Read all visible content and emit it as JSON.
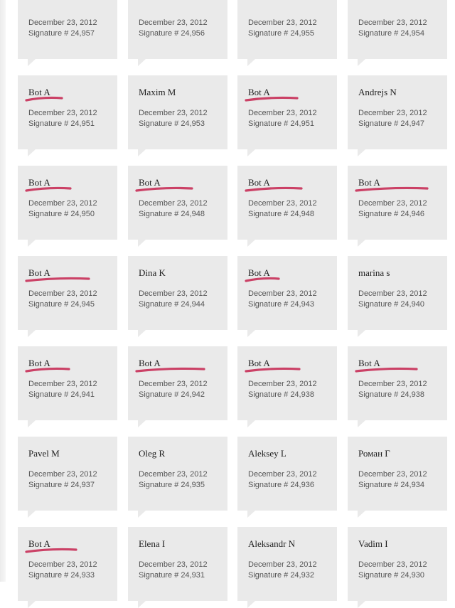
{
  "signature_label": "Signature #",
  "annotation_color": "#c8325a",
  "rows": [
    [
      {
        "name": "",
        "date": "December 23, 2012",
        "signature": "Signature # 24,957",
        "highlighted": false
      },
      {
        "name": "",
        "date": "December 23, 2012",
        "signature": "Signature # 24,956",
        "highlighted": false
      },
      {
        "name": "",
        "date": "December 23, 2012",
        "signature": "Signature # 24,955",
        "highlighted": false
      },
      {
        "name": "",
        "date": "December 23, 2012",
        "signature": "Signature # 24,954",
        "highlighted": false
      }
    ],
    [
      {
        "name": "Bot A",
        "date": "December 23, 2012",
        "signature": "Signature # 24,951",
        "highlighted": true
      },
      {
        "name": "Maxim M",
        "date": "December 23, 2012",
        "signature": "Signature # 24,953",
        "highlighted": false
      },
      {
        "name": "Bot A",
        "date": "December 23, 2012",
        "signature": "Signature # 24,951",
        "highlighted": true
      },
      {
        "name": "Andrejs N",
        "date": "December 23, 2012",
        "signature": "Signature # 24,947",
        "highlighted": false
      }
    ],
    [
      {
        "name": "Bot A",
        "date": "December 23, 2012",
        "signature": "Signature # 24,950",
        "highlighted": true
      },
      {
        "name": "Bot A",
        "date": "December 23, 2012",
        "signature": "Signature # 24,948",
        "highlighted": true
      },
      {
        "name": "Bot A",
        "date": "December 23, 2012",
        "signature": "Signature # 24,948",
        "highlighted": true
      },
      {
        "name": "Bot A",
        "date": "December 23, 2012",
        "signature": "Signature # 24,946",
        "highlighted": true
      }
    ],
    [
      {
        "name": "Bot A",
        "date": "December 23, 2012",
        "signature": "Signature # 24,945",
        "highlighted": true
      },
      {
        "name": "Dina K",
        "date": "December 23, 2012",
        "signature": "Signature # 24,944",
        "highlighted": false
      },
      {
        "name": "Bot A",
        "date": "December 23, 2012",
        "signature": "Signature # 24,943",
        "highlighted": true
      },
      {
        "name": "marina s",
        "date": "December 23, 2012",
        "signature": "Signature # 24,940",
        "highlighted": false
      }
    ],
    [
      {
        "name": "Bot A",
        "date": "December 23, 2012",
        "signature": "Signature # 24,941",
        "highlighted": true
      },
      {
        "name": "Bot A",
        "date": "December 23, 2012",
        "signature": "Signature # 24,942",
        "highlighted": true
      },
      {
        "name": "Bot A",
        "date": "December 23, 2012",
        "signature": "Signature # 24,938",
        "highlighted": true
      },
      {
        "name": "Bot A",
        "date": "December 23, 2012",
        "signature": "Signature # 24,938",
        "highlighted": true
      }
    ],
    [
      {
        "name": "Pavel M",
        "date": "December 23, 2012",
        "signature": "Signature # 24,937",
        "highlighted": false
      },
      {
        "name": "Oleg R",
        "date": "December 23, 2012",
        "signature": "Signature # 24,935",
        "highlighted": false
      },
      {
        "name": "Aleksey L",
        "date": "December 23, 2012",
        "signature": "Signature # 24,936",
        "highlighted": false
      },
      {
        "name": "Роман Г",
        "date": "December 23, 2012",
        "signature": "Signature # 24,934",
        "highlighted": false
      }
    ],
    [
      {
        "name": "Bot A",
        "date": "December 23, 2012",
        "signature": "Signature # 24,933",
        "highlighted": true
      },
      {
        "name": "Elena I",
        "date": "December 23, 2012",
        "signature": "Signature # 24,931",
        "highlighted": false
      },
      {
        "name": "Aleksandr N",
        "date": "December 23, 2012",
        "signature": "Signature # 24,932",
        "highlighted": false
      },
      {
        "name": "Vadim I",
        "date": "December 23, 2012",
        "signature": "Signature # 24,930",
        "highlighted": false
      }
    ]
  ]
}
